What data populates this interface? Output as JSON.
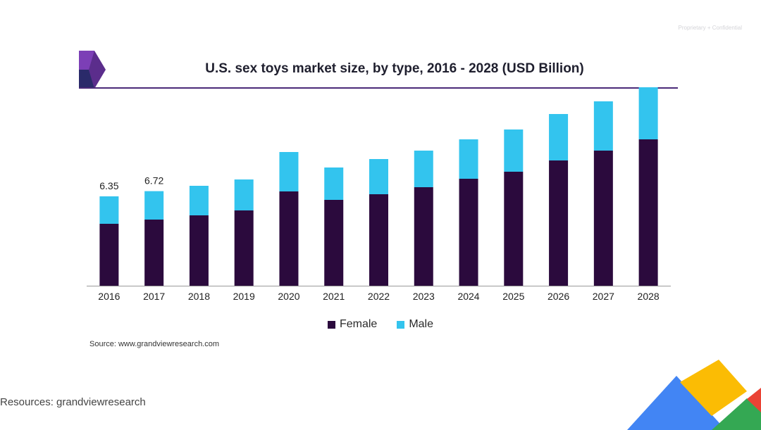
{
  "header": {
    "top_note": "Proprietary + Confidential"
  },
  "chart_data": {
    "type": "bar",
    "stacked": true,
    "title": "U.S. sex toys market size, by type, 2016 - 2028 (USD Billion)",
    "categories": [
      "2016",
      "2017",
      "2018",
      "2019",
      "2020",
      "2021",
      "2022",
      "2023",
      "2024",
      "2025",
      "2026",
      "2027",
      "2028"
    ],
    "series": [
      {
        "name": "Female",
        "color": "#2b0a3d",
        "values": [
          4.4,
          4.7,
          5.0,
          5.35,
          6.7,
          6.1,
          6.5,
          7.0,
          7.6,
          8.1,
          8.9,
          9.6,
          10.4
        ]
      },
      {
        "name": "Male",
        "color": "#33c4ee",
        "values": [
          1.95,
          2.02,
          2.1,
          2.2,
          2.8,
          2.3,
          2.5,
          2.6,
          2.8,
          3.0,
          3.3,
          3.5,
          3.7
        ]
      }
    ],
    "data_labels": [
      {
        "category": "2016",
        "text": "6.35"
      },
      {
        "category": "2017",
        "text": "6.72"
      }
    ],
    "ylim": [
      0,
      14.0
    ],
    "grid": false,
    "legend_position": "bottom"
  },
  "footer": {
    "source": "Source: www.grandviewresearch.com",
    "resources": "Resources: grandviewresearch"
  }
}
